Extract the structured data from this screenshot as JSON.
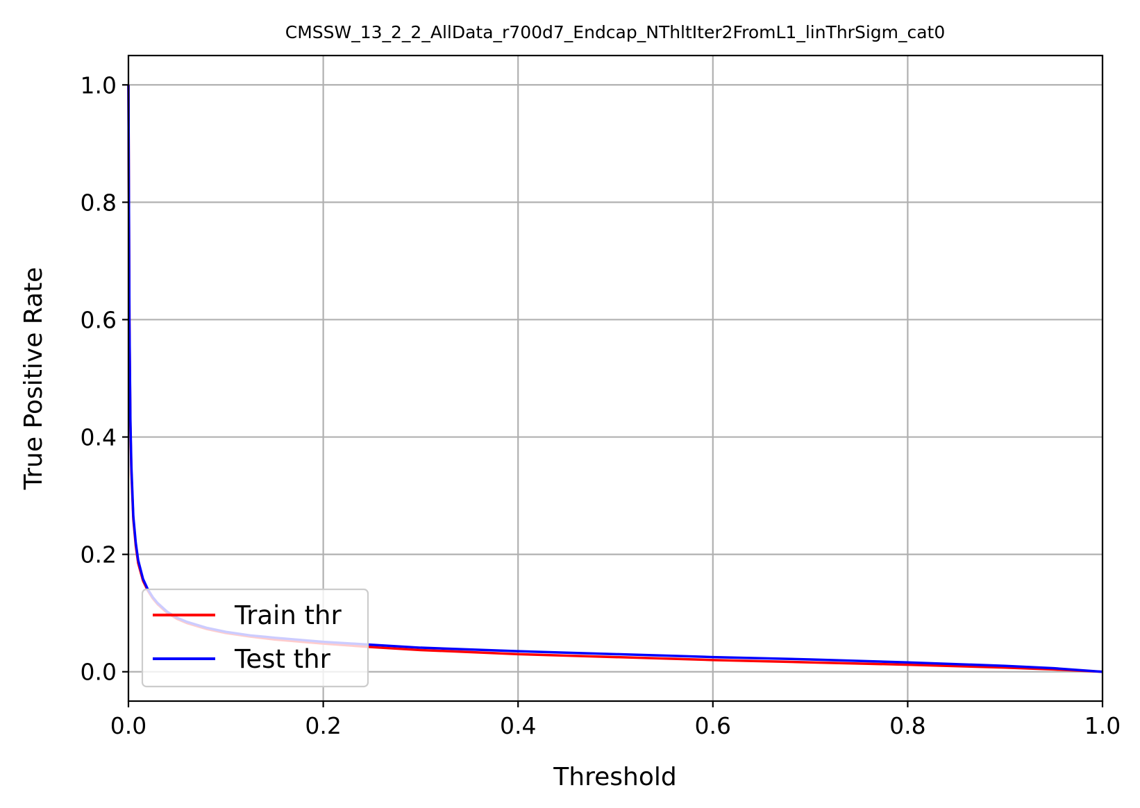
{
  "chart_data": {
    "type": "line",
    "title": "CMSSW_13_2_2_AllData_r700d7_Endcap_NThltIter2FromL1_linThrSigm_cat0",
    "xlabel": "Threshold",
    "ylabel": "True Positive Rate",
    "xlim": [
      0.0,
      1.0
    ],
    "ylim": [
      -0.05,
      1.05
    ],
    "xticks": [
      0.0,
      0.2,
      0.4,
      0.6,
      0.8,
      1.0
    ],
    "xtick_labels": [
      "0.0",
      "0.2",
      "0.4",
      "0.6",
      "0.8",
      "1.0"
    ],
    "yticks": [
      0.0,
      0.2,
      0.4,
      0.6,
      0.8,
      1.0
    ],
    "ytick_labels": [
      "0.0",
      "0.2",
      "0.4",
      "0.6",
      "0.8",
      "1.0"
    ],
    "grid": true,
    "legend_position": "lower-left",
    "series": [
      {
        "name": "Train thr",
        "color": "#ff0000",
        "x": [
          0.0,
          0.001,
          0.002,
          0.003,
          0.005,
          0.0075,
          0.01,
          0.015,
          0.02,
          0.025,
          0.03,
          0.04,
          0.05,
          0.06,
          0.08,
          0.1,
          0.125,
          0.15,
          0.2,
          0.25,
          0.3,
          0.4,
          0.5,
          0.6,
          0.7,
          0.8,
          0.9,
          0.95,
          1.0
        ],
        "y": [
          1.0,
          0.6,
          0.42,
          0.34,
          0.26,
          0.215,
          0.185,
          0.155,
          0.138,
          0.125,
          0.115,
          0.1,
          0.09,
          0.083,
          0.073,
          0.066,
          0.06,
          0.055,
          0.048,
          0.042,
          0.037,
          0.03,
          0.025,
          0.02,
          0.016,
          0.012,
          0.007,
          0.004,
          0.0
        ]
      },
      {
        "name": "Test thr",
        "color": "#0000ff",
        "x": [
          0.0,
          0.001,
          0.002,
          0.003,
          0.005,
          0.0075,
          0.01,
          0.015,
          0.02,
          0.025,
          0.03,
          0.04,
          0.05,
          0.06,
          0.08,
          0.1,
          0.125,
          0.15,
          0.2,
          0.25,
          0.3,
          0.4,
          0.5,
          0.6,
          0.7,
          0.8,
          0.9,
          0.95,
          1.0
        ],
        "y": [
          1.0,
          0.6,
          0.43,
          0.35,
          0.265,
          0.22,
          0.19,
          0.158,
          0.14,
          0.127,
          0.117,
          0.102,
          0.092,
          0.085,
          0.075,
          0.068,
          0.062,
          0.058,
          0.051,
          0.046,
          0.041,
          0.035,
          0.03,
          0.025,
          0.021,
          0.016,
          0.01,
          0.006,
          0.0
        ]
      }
    ]
  }
}
